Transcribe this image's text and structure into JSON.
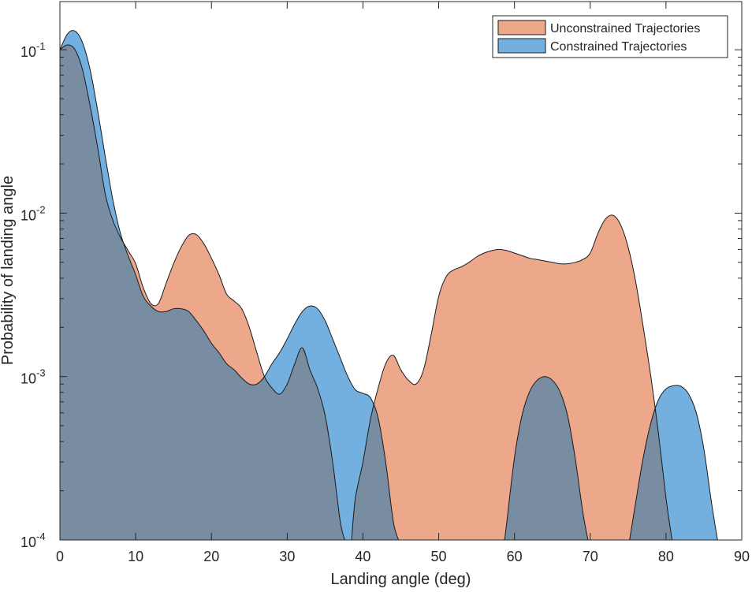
{
  "chart_data": {
    "type": "area",
    "xlabel": "Landing angle (deg)",
    "ylabel": "Probability of landing angle",
    "xlim": [
      0,
      90
    ],
    "ylim": [
      0.0001,
      0.12
    ],
    "yscale": "log",
    "xticks": [
      0,
      10,
      20,
      30,
      40,
      50,
      60,
      70,
      80,
      90
    ],
    "yticks": [
      {
        "value": 0.0001,
        "base": "10",
        "exp": "-4"
      },
      {
        "value": 0.001,
        "base": "10",
        "exp": "-3"
      },
      {
        "value": 0.01,
        "base": "10",
        "exp": "-2"
      },
      {
        "value": 0.1,
        "base": "10",
        "exp": "-1"
      }
    ],
    "grid": false,
    "legend_position": "top-right",
    "series": [
      {
        "name": "Unconstrained Trajectories",
        "color": "#EDA88C",
        "points": [
          [
            0,
            0.1
          ],
          [
            1,
            0.107
          ],
          [
            2,
            0.1
          ],
          [
            3,
            0.075
          ],
          [
            4,
            0.045
          ],
          [
            5,
            0.025
          ],
          [
            6,
            0.013
          ],
          [
            7,
            0.009
          ],
          [
            8,
            0.0071
          ],
          [
            9,
            0.0059
          ],
          [
            10,
            0.0049
          ],
          [
            11,
            0.0035
          ],
          [
            12,
            0.0028
          ],
          [
            13,
            0.0028
          ],
          [
            14,
            0.0037
          ],
          [
            15,
            0.0049
          ],
          [
            16,
            0.0062
          ],
          [
            17,
            0.0073
          ],
          [
            18,
            0.0074
          ],
          [
            19,
            0.0065
          ],
          [
            20,
            0.0053
          ],
          [
            21,
            0.0042
          ],
          [
            22,
            0.0032
          ],
          [
            23,
            0.0029
          ],
          [
            24,
            0.0026
          ],
          [
            25,
            0.002
          ],
          [
            26,
            0.0014
          ],
          [
            27,
            0.001
          ],
          [
            28,
            0.00085
          ],
          [
            29,
            0.00078
          ],
          [
            30,
            0.0009
          ],
          [
            31,
            0.0012
          ],
          [
            32,
            0.0015
          ],
          [
            33,
            0.0011
          ],
          [
            34,
            0.00085
          ],
          [
            35,
            0.00058
          ],
          [
            36,
            0.0003
          ],
          [
            37,
            0.00013
          ],
          [
            37.6,
            0.0001
          ]
        ]
      },
      {
        "name": "",
        "color": "#EDA88C",
        "points": [
          [
            38.5,
            0.0001
          ],
          [
            39,
            0.00018
          ],
          [
            40,
            0.0003
          ],
          [
            41,
            0.00055
          ],
          [
            42,
            0.00085
          ],
          [
            43,
            0.0012
          ],
          [
            44,
            0.00135
          ],
          [
            45,
            0.0011
          ],
          [
            46,
            0.00095
          ],
          [
            47,
            0.0009
          ],
          [
            48,
            0.0011
          ],
          [
            49,
            0.0018
          ],
          [
            50,
            0.0031
          ],
          [
            51,
            0.0041
          ],
          [
            52,
            0.0045
          ],
          [
            53,
            0.0047
          ],
          [
            54,
            0.005
          ],
          [
            55,
            0.0054
          ],
          [
            56,
            0.0057
          ],
          [
            57,
            0.0059
          ],
          [
            58,
            0.006
          ],
          [
            59,
            0.0059
          ],
          [
            60,
            0.0057
          ],
          [
            61,
            0.0055
          ],
          [
            62,
            0.0053
          ],
          [
            63,
            0.0052
          ],
          [
            64,
            0.0051
          ],
          [
            65,
            0.005
          ],
          [
            66,
            0.0049
          ],
          [
            67,
            0.0049
          ],
          [
            68,
            0.005
          ],
          [
            69,
            0.0052
          ],
          [
            70,
            0.0057
          ],
          [
            71,
            0.0075
          ],
          [
            72,
            0.0092
          ],
          [
            73,
            0.0097
          ],
          [
            74,
            0.0085
          ],
          [
            75,
            0.0062
          ],
          [
            76,
            0.0038
          ],
          [
            77,
            0.002
          ],
          [
            78,
            0.001
          ],
          [
            79,
            0.00045
          ],
          [
            80,
            0.00018
          ],
          [
            80.8,
            0.0001
          ]
        ]
      },
      {
        "name": "Constrained Trajectories",
        "color": "#74B0DF",
        "points": [
          [
            0,
            0.1
          ],
          [
            1,
            0.125
          ],
          [
            2,
            0.13
          ],
          [
            3,
            0.11
          ],
          [
            4,
            0.075
          ],
          [
            5,
            0.042
          ],
          [
            6,
            0.022
          ],
          [
            7,
            0.012
          ],
          [
            8,
            0.0075
          ],
          [
            9,
            0.0055
          ],
          [
            10,
            0.0042
          ],
          [
            11,
            0.0031
          ],
          [
            12,
            0.0027
          ],
          [
            13,
            0.0025
          ],
          [
            14,
            0.0025
          ],
          [
            15,
            0.0026
          ],
          [
            16,
            0.0026
          ],
          [
            17,
            0.0025
          ],
          [
            18,
            0.0022
          ],
          [
            19,
            0.0019
          ],
          [
            20,
            0.0016
          ],
          [
            21,
            0.0014
          ],
          [
            22,
            0.0012
          ],
          [
            23,
            0.0011
          ],
          [
            24,
            0.00098
          ],
          [
            25,
            0.0009
          ],
          [
            26,
            0.0009
          ],
          [
            27,
            0.001
          ],
          [
            28,
            0.0012
          ],
          [
            29,
            0.0014
          ],
          [
            30,
            0.0017
          ],
          [
            31,
            0.0021
          ],
          [
            32,
            0.0025
          ],
          [
            33,
            0.0027
          ],
          [
            34,
            0.0026
          ],
          [
            35,
            0.0022
          ],
          [
            36,
            0.0017
          ],
          [
            37,
            0.0013
          ],
          [
            38,
            0.001
          ],
          [
            39,
            0.00083
          ],
          [
            40,
            0.00079
          ],
          [
            41,
            0.00074
          ],
          [
            42,
            0.00056
          ],
          [
            43,
            0.0003
          ],
          [
            44,
            0.00013
          ],
          [
            44.7,
            0.0001
          ]
        ]
      },
      {
        "name": "",
        "color": "#74B0DF",
        "points": [
          [
            58.7,
            0.0001
          ],
          [
            59,
            0.00013
          ],
          [
            60,
            0.00032
          ],
          [
            61,
            0.00058
          ],
          [
            62,
            0.00081
          ],
          [
            63,
            0.00095
          ],
          [
            64,
            0.001
          ],
          [
            65,
            0.00095
          ],
          [
            66,
            0.00081
          ],
          [
            67,
            0.00058
          ],
          [
            68,
            0.00032
          ],
          [
            69,
            0.00015
          ],
          [
            69.7,
            0.0001
          ]
        ]
      },
      {
        "name": "",
        "color": "#74B0DF",
        "points": [
          [
            75.2,
            0.0001
          ],
          [
            76,
            0.00017
          ],
          [
            77,
            0.00032
          ],
          [
            78,
            0.00052
          ],
          [
            79,
            0.00072
          ],
          [
            80,
            0.00084
          ],
          [
            81,
            0.00088
          ],
          [
            82,
            0.00087
          ],
          [
            83,
            0.00078
          ],
          [
            84,
            0.0006
          ],
          [
            85,
            0.00036
          ],
          [
            86,
            0.00017
          ],
          [
            86.8,
            0.0001
          ]
        ]
      }
    ]
  }
}
